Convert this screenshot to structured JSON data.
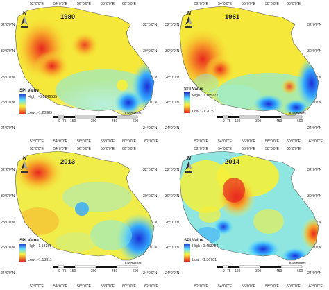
{
  "axes": {
    "longitudes": [
      "52°0'0\"E",
      "54°0'0\"E",
      "56°0'0\"E",
      "58°0'0\"E",
      "60°0'0\"E",
      "62°0'0\"E"
    ],
    "latitudes": [
      "32°0'0\"N",
      "30°0'0\"N",
      "28°0'0\"N",
      "26°0'0\"N",
      "24°0'0\"N"
    ]
  },
  "legend": {
    "title": "SPI Value",
    "high_prefix": "High : ",
    "low_prefix": "Low : "
  },
  "scale_bar": {
    "ticks": [
      "0",
      "75",
      "150",
      "300",
      "450",
      "600"
    ],
    "unit": "Kilometers"
  },
  "north_arrow": {
    "letter": "N"
  },
  "colors": {
    "high": "#1a2fd6",
    "mid": "#f5f03a",
    "low": "#e8281e"
  },
  "maps": [
    {
      "year": "1980",
      "spi_high": "-0.0246585",
      "spi_low": "-1.20389"
    },
    {
      "year": "1981",
      "spi_high": "0.185271",
      "spi_low": "-1.2039"
    },
    {
      "year": "2013",
      "spi_high": "1.13398",
      "spi_low": "-1.13311"
    },
    {
      "year": "2014",
      "spi_high": "0.463767",
      "spi_low": "-1.36701"
    }
  ]
}
